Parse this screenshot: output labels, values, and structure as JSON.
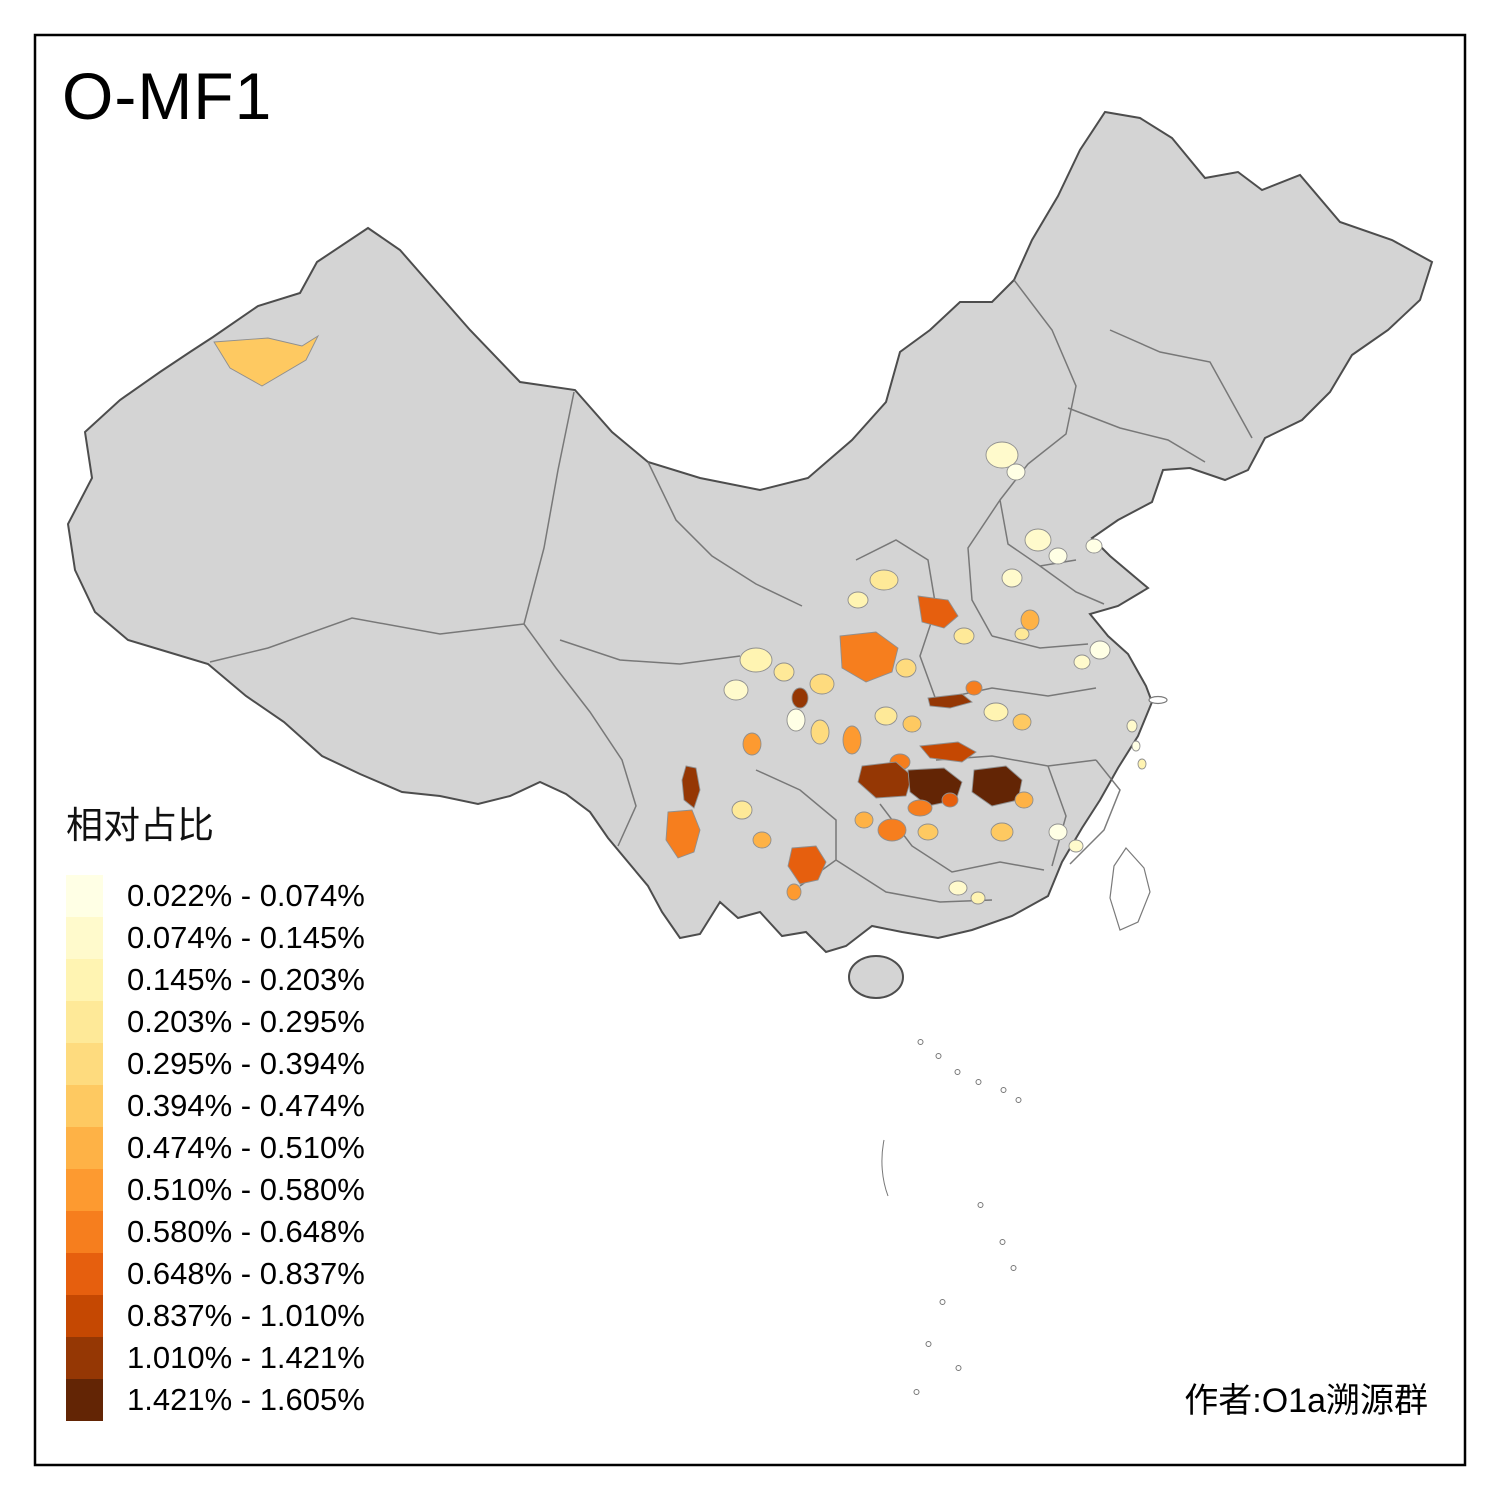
{
  "title": "O-MF1",
  "legend": {
    "title": "相对占比",
    "items": [
      {
        "label": "0.022% - 0.074%",
        "color": "#FFFFE5"
      },
      {
        "label": "0.074% - 0.145%",
        "color": "#FFFACC"
      },
      {
        "label": "0.145% - 0.203%",
        "color": "#FFF4B2"
      },
      {
        "label": "0.203% - 0.295%",
        "color": "#FEE998"
      },
      {
        "label": "0.295% - 0.394%",
        "color": "#FEDB7E"
      },
      {
        "label": "0.394% - 0.474%",
        "color": "#FEC961"
      },
      {
        "label": "0.474% - 0.510%",
        "color": "#FEB246"
      },
      {
        "label": "0.510% - 0.580%",
        "color": "#FD9A30"
      },
      {
        "label": "0.580% - 0.648%",
        "color": "#F67E1E"
      },
      {
        "label": "0.648% - 0.837%",
        "color": "#E65F0E"
      },
      {
        "label": "0.837% - 1.010%",
        "color": "#C54802"
      },
      {
        "label": "1.010% - 1.421%",
        "color": "#953704"
      },
      {
        "label": "1.421% - 1.605%",
        "color": "#632505"
      }
    ]
  },
  "credit": "作者:O1a溯源群",
  "map": {
    "base_fill": "#D4D4D4",
    "border_color": "#4D4D4D",
    "background": "#FFFFFF"
  }
}
